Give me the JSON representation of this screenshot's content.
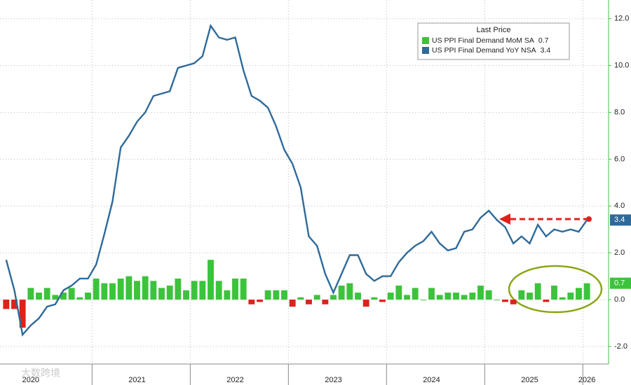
{
  "chart_data": {
    "type": "bar_line",
    "legend_title": "Last Price",
    "watermark": "大数跨境",
    "categories": [
      null,
      null,
      null,
      "2020",
      null,
      null,
      null,
      null,
      null,
      null,
      null,
      null,
      null,
      null,
      null,
      null,
      "2021",
      null,
      null,
      null,
      null,
      null,
      null,
      null,
      null,
      null,
      null,
      null,
      "2022",
      null,
      null,
      null,
      null,
      null,
      null,
      null,
      null,
      null,
      null,
      null,
      "2023",
      null,
      null,
      null,
      null,
      null,
      null,
      null,
      null,
      null,
      null,
      null,
      "2024",
      null,
      null,
      null,
      null,
      null,
      null,
      null,
      null,
      null,
      null,
      null,
      "2025",
      null,
      null,
      null,
      null,
      null,
      null,
      "2026"
    ],
    "series": [
      {
        "name": "US PPI Final Demand MoM SA",
        "color": "#3cc33c",
        "negative_color": "#e0201b",
        "kind": "bar",
        "values": [
          -0.4,
          -0.4,
          -1.2,
          0.5,
          0.3,
          0.5,
          0.2,
          0.3,
          0.5,
          0.1,
          0.3,
          0.9,
          0.7,
          0.7,
          0.9,
          1.0,
          0.8,
          1.0,
          0.8,
          0.5,
          0.6,
          0.9,
          0.4,
          0.8,
          0.8,
          1.7,
          0.8,
          0.4,
          0.9,
          0.9,
          -0.2,
          -0.1,
          0.4,
          0.4,
          0.4,
          -0.3,
          0.1,
          -0.2,
          0.2,
          -0.2,
          0.2,
          0.6,
          0.7,
          0.3,
          -0.3,
          0.1,
          -0.1,
          0.3,
          0.6,
          0.2,
          0.5,
          0.0,
          0.5,
          0.2,
          0.3,
          0.3,
          0.2,
          0.3,
          0.6,
          0.4,
          0.0,
          -0.1,
          -0.2,
          0.4,
          0.3,
          0.7,
          -0.1,
          0.6,
          0.1,
          0.3,
          0.5,
          0.7
        ]
      },
      {
        "name": "US PPI Final Demand YoY NSA",
        "color": "#2e6a9a",
        "kind": "line",
        "values": [
          1.7,
          0.4,
          -1.5,
          -1.1,
          -0.8,
          -0.3,
          -0.2,
          0.4,
          0.6,
          0.9,
          0.9,
          1.5,
          2.8,
          4.2,
          6.5,
          7.0,
          7.6,
          8.0,
          8.7,
          8.8,
          8.9,
          9.9,
          10.0,
          10.1,
          10.4,
          11.7,
          11.2,
          11.1,
          11.2,
          9.8,
          8.7,
          8.5,
          8.2,
          7.4,
          6.4,
          5.8,
          4.8,
          2.7,
          2.3,
          1.1,
          0.3,
          1.1,
          1.9,
          1.9,
          1.1,
          0.8,
          1.0,
          1.0,
          1.6,
          2.0,
          2.3,
          2.5,
          2.9,
          2.4,
          2.1,
          2.2,
          2.9,
          3.0,
          3.5,
          3.8,
          3.4,
          3.1,
          2.4,
          2.7,
          2.4,
          3.2,
          2.7,
          3.0,
          2.9,
          3.0,
          2.9,
          3.4
        ]
      }
    ],
    "ylim": [
      -2.75,
      12.8
    ],
    "yticks": [
      {
        "value": -2,
        "label": "-2.0"
      },
      {
        "value": 0,
        "label": "0.0"
      },
      {
        "value": 2,
        "label": "2.0"
      },
      {
        "value": 4,
        "label": "4.0"
      },
      {
        "value": 6,
        "label": "6.0"
      },
      {
        "value": 8,
        "label": "8.0"
      },
      {
        "value": 10,
        "label": "10.0"
      },
      {
        "value": 12,
        "label": "12.0"
      }
    ],
    "grid": true
  }
}
